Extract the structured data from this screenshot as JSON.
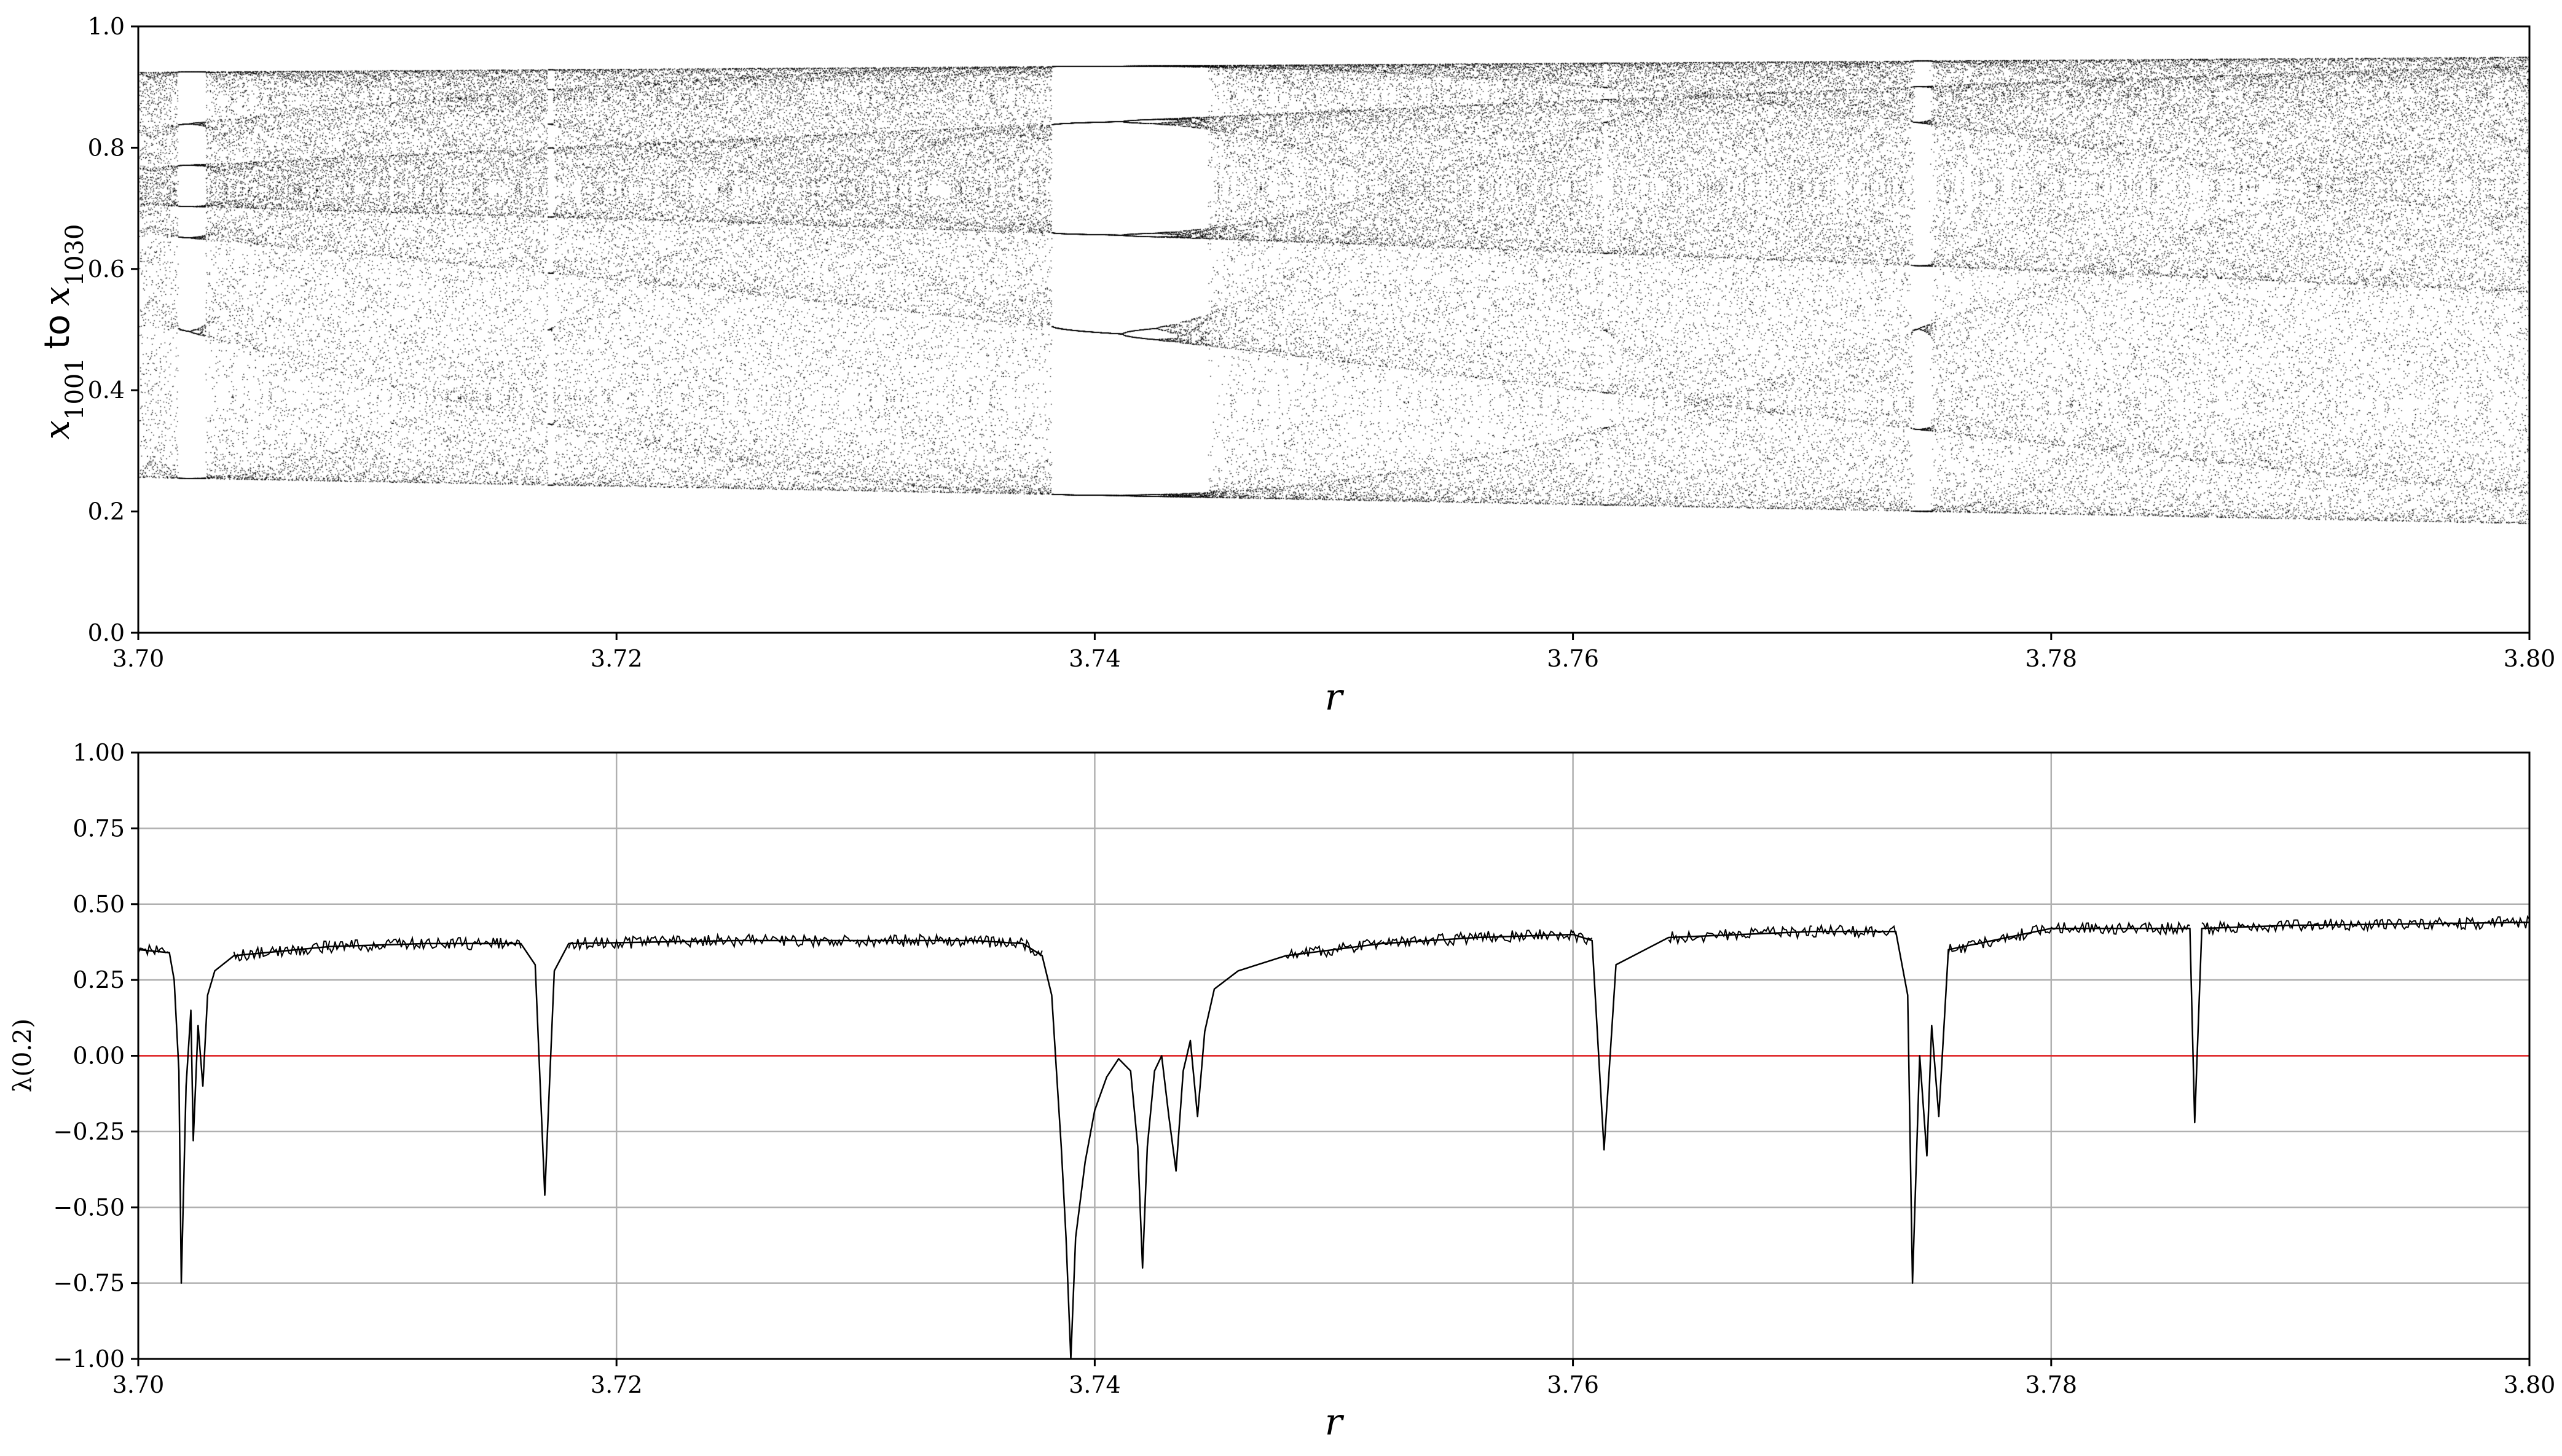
{
  "chart_data": [
    {
      "type": "scatter",
      "xlabel": "r",
      "ylabel": {
        "base": "x",
        "sub_start": "1001",
        "connector": "to",
        "sub_end": "1030"
      },
      "xlim": [
        3.7,
        3.8
      ],
      "ylim": [
        0.0,
        1.0
      ],
      "x_ticks": [
        "3.70",
        "3.72",
        "3.74",
        "3.76",
        "3.78",
        "3.80"
      ],
      "y_ticks": [
        "0.0",
        "0.2",
        "0.4",
        "0.6",
        "0.8",
        "1.0"
      ],
      "grid": false,
      "point_color": "#000000",
      "iterations_plotted": [
        1001,
        1030
      ],
      "periodic_windows": [
        {
          "r_start": 3.7016,
          "r_end": 3.7029,
          "period": 5
        },
        {
          "r_start": 3.7168,
          "r_end": 3.7173,
          "period": 4
        },
        {
          "r_start": 3.7383,
          "r_end": 3.7449,
          "period": 5
        },
        {
          "r_start": 3.7613,
          "r_end": 3.7617,
          "period": 6
        },
        {
          "r_start": 3.7742,
          "r_end": 3.7751,
          "period": 4
        },
        {
          "r_start": 3.7859,
          "r_end": 3.7862,
          "period": 6
        }
      ]
    },
    {
      "type": "line",
      "xlabel": "r",
      "ylabel": "λ(0.2)",
      "xlim": [
        3.7,
        3.8
      ],
      "ylim": [
        -1.0,
        1.0
      ],
      "x_ticks": [
        "3.70",
        "3.72",
        "3.74",
        "3.76",
        "3.78",
        "3.80"
      ],
      "y_ticks": [
        "−1.00",
        "−0.75",
        "−0.50",
        "−0.25",
        "0.00",
        "0.25",
        "0.50",
        "0.75",
        "1.00"
      ],
      "grid": true,
      "series": [
        {
          "color": "#000000",
          "points": [
            [
              3.7,
              0.35
            ],
            [
              3.7013,
              0.34
            ],
            [
              3.7015,
              0.25
            ],
            [
              3.7017,
              -0.05
            ],
            [
              3.7018,
              -0.75
            ],
            [
              3.702,
              -0.1
            ],
            [
              3.7022,
              0.15
            ],
            [
              3.7023,
              -0.28
            ],
            [
              3.7025,
              0.1
            ],
            [
              3.7027,
              -0.1
            ],
            [
              3.7029,
              0.2
            ],
            [
              3.7032,
              0.28
            ],
            [
              3.704,
              0.33
            ],
            [
              3.708,
              0.36
            ],
            [
              3.712,
              0.37
            ],
            [
              3.716,
              0.37
            ],
            [
              3.7166,
              0.3
            ],
            [
              3.717,
              -0.46
            ],
            [
              3.7174,
              0.28
            ],
            [
              3.718,
              0.37
            ],
            [
              3.725,
              0.38
            ],
            [
              3.73,
              0.38
            ],
            [
              3.735,
              0.38
            ],
            [
              3.737,
              0.37
            ],
            [
              3.7378,
              0.33
            ],
            [
              3.7382,
              0.2
            ],
            [
              3.7384,
              -0.05
            ],
            [
              3.7386,
              -0.3
            ],
            [
              3.7388,
              -0.6
            ],
            [
              3.739,
              -1.0
            ],
            [
              3.7392,
              -0.6
            ],
            [
              3.7396,
              -0.35
            ],
            [
              3.74,
              -0.18
            ],
            [
              3.7405,
              -0.07
            ],
            [
              3.741,
              -0.01
            ],
            [
              3.7415,
              -0.05
            ],
            [
              3.7418,
              -0.3
            ],
            [
              3.742,
              -0.7
            ],
            [
              3.7422,
              -0.3
            ],
            [
              3.7425,
              -0.05
            ],
            [
              3.7428,
              0.0
            ],
            [
              3.7431,
              -0.2
            ],
            [
              3.7434,
              -0.38
            ],
            [
              3.7437,
              -0.05
            ],
            [
              3.744,
              0.05
            ],
            [
              3.7443,
              -0.2
            ],
            [
              3.7446,
              0.08
            ],
            [
              3.745,
              0.22
            ],
            [
              3.746,
              0.28
            ],
            [
              3.748,
              0.33
            ],
            [
              3.752,
              0.37
            ],
            [
              3.756,
              0.39
            ],
            [
              3.76,
              0.4
            ],
            [
              3.7608,
              0.38
            ],
            [
              3.7613,
              -0.31
            ],
            [
              3.7618,
              0.3
            ],
            [
              3.764,
              0.39
            ],
            [
              3.77,
              0.41
            ],
            [
              3.7735,
              0.41
            ],
            [
              3.774,
              0.2
            ],
            [
              3.7742,
              -0.75
            ],
            [
              3.7745,
              0.0
            ],
            [
              3.7748,
              -0.33
            ],
            [
              3.775,
              0.1
            ],
            [
              3.7753,
              -0.2
            ],
            [
              3.7757,
              0.35
            ],
            [
              3.78,
              0.42
            ],
            [
              3.7858,
              0.42
            ],
            [
              3.786,
              -0.22
            ],
            [
              3.7863,
              0.42
            ],
            [
              3.79,
              0.43
            ],
            [
              3.8,
              0.44
            ]
          ]
        },
        {
          "color": "#e31a1c",
          "points": [
            [
              3.7,
              0.0
            ],
            [
              3.8,
              0.0
            ]
          ]
        }
      ]
    }
  ]
}
